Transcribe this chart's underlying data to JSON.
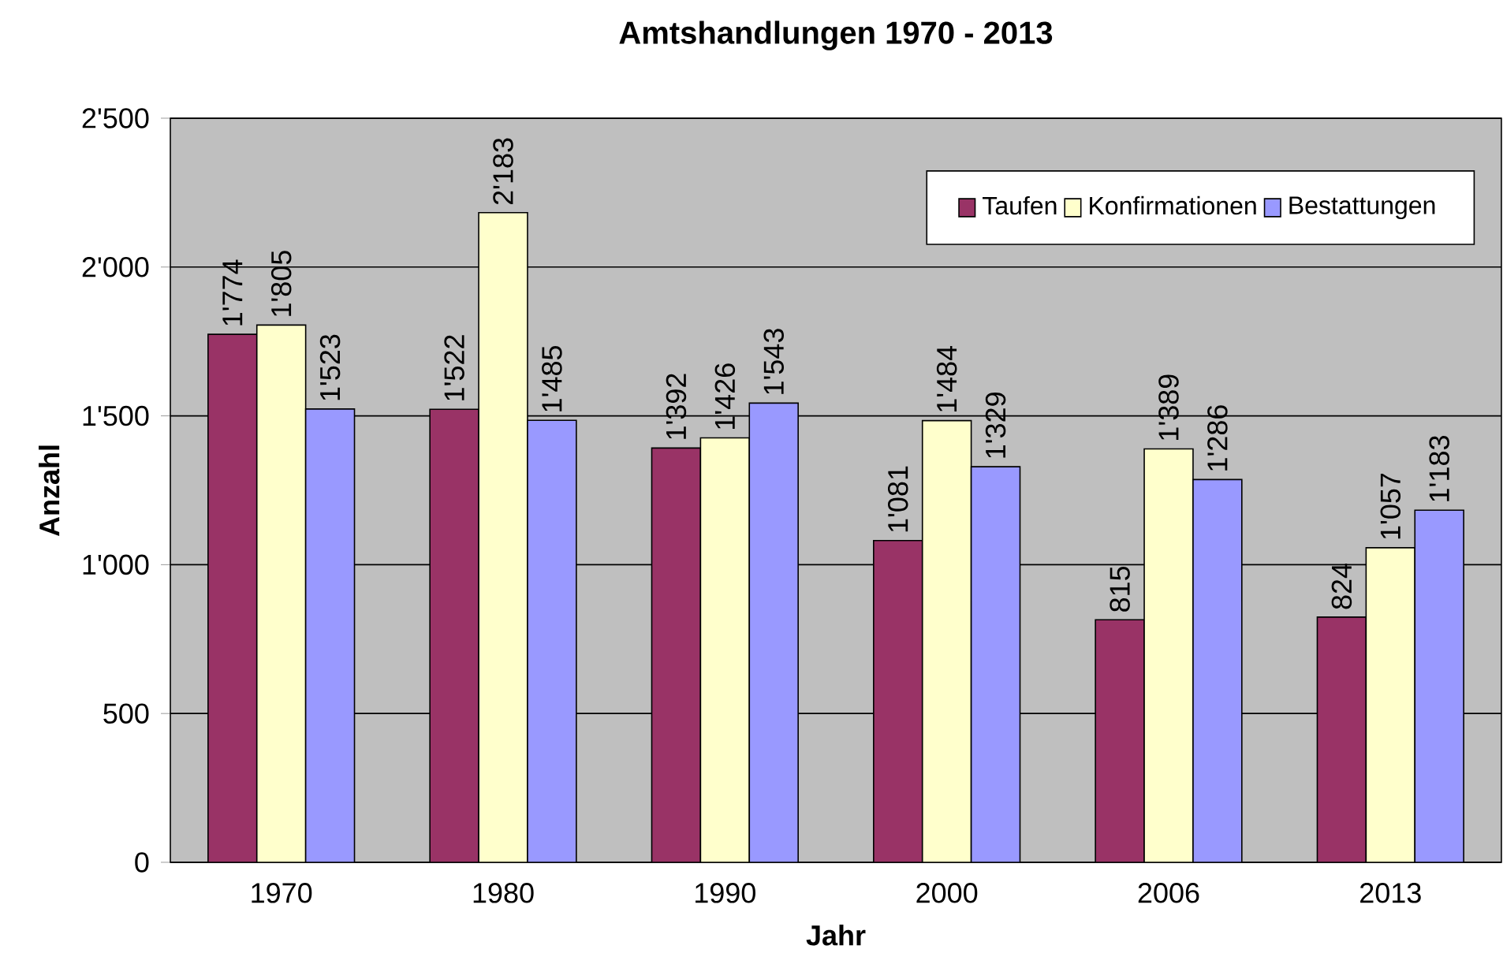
{
  "chart_data": {
    "type": "bar",
    "title": "Amtshandlungen 1970 - 2013",
    "xlabel": "Jahr",
    "ylabel": "Anzahl",
    "categories": [
      "1970",
      "1980",
      "1990",
      "2000",
      "2006",
      "2013"
    ],
    "series": [
      {
        "name": "Taufen",
        "color": "#993366",
        "values": [
          1774,
          1522,
          1392,
          1081,
          815,
          824
        ],
        "value_labels": [
          "1'774",
          "1'522",
          "1'392",
          "1'081",
          "815",
          "824"
        ]
      },
      {
        "name": "Konfirmationen",
        "color": "#ffffcc",
        "values": [
          1805,
          2183,
          1426,
          1484,
          1389,
          1057
        ],
        "value_labels": [
          "1'805",
          "2'183",
          "1'426",
          "1'484",
          "1'389",
          "1'057"
        ]
      },
      {
        "name": "Bestattungen",
        "color": "#9999ff",
        "values": [
          1523,
          1485,
          1543,
          1329,
          1286,
          1183
        ],
        "value_labels": [
          "1'523",
          "1'485",
          "1'543",
          "1'329",
          "1'286",
          "1'183"
        ]
      }
    ],
    "ylim": [
      0,
      2500
    ],
    "yticks": [
      0,
      500,
      {
        "value": 1000,
        "label": "1'000"
      },
      {
        "value": 1500,
        "label": "1'500"
      },
      {
        "value": 2000,
        "label": "2'000"
      },
      {
        "value": 2500,
        "label": "2'500"
      }
    ],
    "grid": "y",
    "legend": "top right"
  }
}
